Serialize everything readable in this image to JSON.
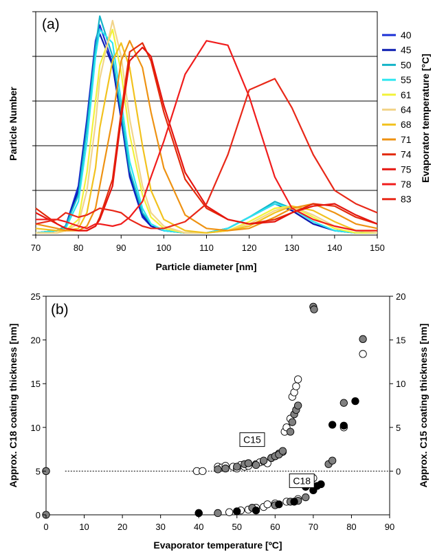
{
  "chart_data": [
    {
      "type": "line",
      "panel_label": "(a)",
      "xlabel": "Particle diameter [nm]",
      "ylabel": "Particle Number",
      "legend_title": "Evaporator temperature [°C]",
      "legend_placement": "right",
      "xlim": [
        70,
        150
      ],
      "xticks": [
        "70",
        "80",
        "90",
        "100",
        "110",
        "120",
        "130",
        "140",
        "150"
      ],
      "ylim": [
        0,
        1
      ],
      "y_tick_count": 6,
      "y_tick_labels_shown": false,
      "gridlines_y": [
        0.2,
        0.4,
        0.6,
        0.8
      ],
      "series": [
        {
          "name": "40",
          "color": "#1a2fd6",
          "x": [
            70,
            75,
            77,
            80,
            82,
            84,
            85,
            88,
            90,
            92,
            95,
            97,
            100,
            105,
            110,
            115,
            120,
            126,
            130,
            135,
            140,
            145,
            150
          ],
          "y": [
            0.01,
            0.02,
            0.04,
            0.22,
            0.52,
            0.87,
            0.94,
            0.77,
            0.52,
            0.26,
            0.08,
            0.04,
            0.02,
            0.01,
            0.01,
            0.03,
            0.08,
            0.14,
            0.11,
            0.05,
            0.02,
            0.01,
            0.01
          ]
        },
        {
          "name": "45",
          "color": "#0a1bb0",
          "x": [
            70,
            75,
            77,
            80,
            82,
            84,
            85,
            88,
            90,
            92,
            95,
            97,
            100,
            105,
            110,
            115,
            120,
            126,
            130,
            135,
            140,
            145,
            150
          ],
          "y": [
            0.01,
            0.02,
            0.04,
            0.2,
            0.5,
            0.85,
            0.9,
            0.76,
            0.52,
            0.27,
            0.09,
            0.04,
            0.02,
            0.01,
            0.01,
            0.03,
            0.08,
            0.14,
            0.11,
            0.05,
            0.02,
            0.01,
            0.01
          ]
        },
        {
          "name": "50",
          "color": "#14b4c8",
          "x": [
            70,
            75,
            77,
            80,
            82,
            84,
            85,
            88,
            90,
            92,
            95,
            97,
            100,
            105,
            110,
            115,
            120,
            126,
            130,
            135,
            140,
            145,
            150
          ],
          "y": [
            0.01,
            0.02,
            0.04,
            0.18,
            0.48,
            0.84,
            0.98,
            0.8,
            0.55,
            0.29,
            0.1,
            0.05,
            0.02,
            0.01,
            0.01,
            0.03,
            0.08,
            0.15,
            0.12,
            0.06,
            0.02,
            0.01,
            0.01
          ]
        },
        {
          "name": "55",
          "color": "#2ce6f0",
          "x": [
            70,
            75,
            77,
            80,
            82,
            84,
            85,
            88,
            90,
            92,
            95,
            97,
            100,
            105,
            110,
            115,
            120,
            126,
            130,
            135,
            140,
            145,
            150
          ],
          "y": [
            0.01,
            0.02,
            0.03,
            0.15,
            0.42,
            0.8,
            0.92,
            0.86,
            0.6,
            0.33,
            0.12,
            0.05,
            0.02,
            0.01,
            0.01,
            0.03,
            0.08,
            0.14,
            0.12,
            0.06,
            0.02,
            0.01,
            0.01
          ]
        },
        {
          "name": "61",
          "color": "#f2f23a",
          "x": [
            70,
            75,
            77,
            80,
            82,
            84,
            85,
            88,
            90,
            92,
            95,
            97,
            100,
            105,
            110,
            115,
            120,
            126,
            130,
            135,
            140,
            145,
            150
          ],
          "y": [
            0.01,
            0.01,
            0.02,
            0.07,
            0.28,
            0.6,
            0.76,
            0.92,
            0.73,
            0.45,
            0.18,
            0.08,
            0.03,
            0.01,
            0.01,
            0.02,
            0.06,
            0.12,
            0.13,
            0.08,
            0.03,
            0.01,
            0.01
          ]
        },
        {
          "name": "64",
          "color": "#f2d48a",
          "x": [
            70,
            75,
            77,
            80,
            82,
            84,
            85,
            88,
            90,
            92,
            95,
            97,
            100,
            105,
            110,
            115,
            120,
            126,
            130,
            135,
            140,
            145,
            150
          ],
          "y": [
            0.01,
            0.01,
            0.02,
            0.05,
            0.2,
            0.5,
            0.7,
            0.96,
            0.8,
            0.52,
            0.22,
            0.1,
            0.04,
            0.01,
            0.01,
            0.02,
            0.05,
            0.11,
            0.13,
            0.09,
            0.04,
            0.02,
            0.01
          ]
        },
        {
          "name": "68",
          "color": "#f2c21e",
          "x": [
            70,
            75,
            77,
            80,
            82,
            84,
            85,
            88,
            90,
            92,
            95,
            97,
            100,
            105,
            110,
            115,
            120,
            126,
            130,
            135,
            140,
            145,
            150
          ],
          "y": [
            0.03,
            0.02,
            0.02,
            0.03,
            0.1,
            0.3,
            0.48,
            0.78,
            0.86,
            0.75,
            0.4,
            0.2,
            0.07,
            0.02,
            0.01,
            0.02,
            0.04,
            0.1,
            0.13,
            0.11,
            0.06,
            0.02,
            0.02
          ]
        },
        {
          "name": "71",
          "color": "#ee9212",
          "x": [
            70,
            75,
            77,
            80,
            82,
            84,
            85,
            88,
            90,
            92,
            95,
            97,
            100,
            105,
            110,
            115,
            120,
            126,
            130,
            135,
            140,
            145,
            150
          ],
          "y": [
            0.05,
            0.03,
            0.02,
            0.02,
            0.04,
            0.12,
            0.22,
            0.52,
            0.78,
            0.87,
            0.75,
            0.55,
            0.3,
            0.09,
            0.03,
            0.02,
            0.03,
            0.08,
            0.12,
            0.14,
            0.1,
            0.05,
            0.03
          ]
        },
        {
          "name": "74",
          "color": "#e22a0a",
          "x": [
            70,
            75,
            77,
            80,
            82,
            84,
            85,
            88,
            90,
            92,
            95,
            97,
            100,
            105,
            110,
            115,
            120,
            126,
            130,
            135,
            140,
            145,
            150
          ],
          "y": [
            0.12,
            0.05,
            0.03,
            0.02,
            0.02,
            0.04,
            0.08,
            0.25,
            0.55,
            0.82,
            0.86,
            0.78,
            0.55,
            0.25,
            0.12,
            0.07,
            0.05,
            0.07,
            0.1,
            0.14,
            0.13,
            0.08,
            0.05
          ]
        },
        {
          "name": "75",
          "color": "#e5150f",
          "x": [
            70,
            75,
            77,
            80,
            82,
            84,
            85,
            88,
            90,
            92,
            95,
            97,
            100,
            105,
            110,
            115,
            120,
            126,
            130,
            135,
            140,
            145,
            150
          ],
          "y": [
            0.1,
            0.05,
            0.03,
            0.02,
            0.02,
            0.04,
            0.07,
            0.22,
            0.52,
            0.78,
            0.84,
            0.8,
            0.58,
            0.28,
            0.13,
            0.07,
            0.05,
            0.06,
            0.1,
            0.13,
            0.14,
            0.09,
            0.05
          ]
        },
        {
          "name": "78",
          "color": "#f01c1c",
          "x": [
            70,
            75,
            77,
            80,
            82,
            84,
            85,
            88,
            90,
            92,
            95,
            97,
            100,
            105,
            110,
            115,
            120,
            126,
            130,
            135,
            140,
            145,
            150
          ],
          "y": [
            0.07,
            0.07,
            0.06,
            0.04,
            0.03,
            0.05,
            0.05,
            0.04,
            0.05,
            0.08,
            0.15,
            0.26,
            0.42,
            0.72,
            0.87,
            0.85,
            0.62,
            0.26,
            0.12,
            0.07,
            0.04,
            0.02,
            0.02
          ]
        },
        {
          "name": "83",
          "color": "#e82818",
          "x": [
            70,
            75,
            77,
            80,
            82,
            84,
            85,
            88,
            90,
            92,
            95,
            97,
            100,
            105,
            110,
            115,
            120,
            126,
            130,
            135,
            140,
            145,
            150
          ],
          "y": [
            0.05,
            0.07,
            0.1,
            0.08,
            0.09,
            0.11,
            0.12,
            0.11,
            0.1,
            0.07,
            0.04,
            0.03,
            0.03,
            0.06,
            0.14,
            0.36,
            0.65,
            0.7,
            0.57,
            0.36,
            0.2,
            0.14,
            0.1
          ]
        }
      ]
    },
    {
      "type": "scatter",
      "panel_label": "(b)",
      "xlabel": "Evaporator temperature [ºC]",
      "ylabel": "Approx. C18 coating thickness [nm]",
      "ylabel_right": "Approx. C15 coating thickness [nm]",
      "xlim": [
        0,
        90
      ],
      "xticks": [
        "0",
        "10",
        "20",
        "30",
        "40",
        "50",
        "60",
        "70",
        "80",
        "90"
      ],
      "ylim": [
        0,
        25
      ],
      "yticks": [
        "0",
        "5",
        "10",
        "15",
        "20",
        "25"
      ],
      "ylim_right": [
        -5,
        20
      ],
      "yticks_right": [
        "0",
        "5",
        "10",
        "15",
        "20"
      ],
      "annotations": [
        {
          "text": "C15",
          "x": 54,
          "y": 8.6
        },
        {
          "text": "C18",
          "x": 67,
          "y": 3.9
        }
      ],
      "reference_line": {
        "axis": "right",
        "y": 0,
        "style": "dotted",
        "x_from": 5,
        "x_to": 90
      },
      "series": [
        {
          "marker": "open",
          "color": "#ffffff",
          "axis": "right",
          "x": [
            0,
            39.5,
            41,
            45,
            46,
            47,
            49,
            50,
            51,
            52,
            53,
            55,
            56,
            57,
            58,
            59,
            60,
            61,
            62,
            62.5,
            63,
            64,
            64.5,
            65,
            65.5,
            66
          ],
          "y": [
            0,
            0,
            0,
            0.5,
            0.4,
            0.6,
            0.5,
            0.3,
            0.7,
            0.5,
            0.6,
            0.8,
            1.0,
            1.1,
            0.9,
            1.5,
            1.7,
            2.0,
            2.2,
            4.5,
            5.0,
            6.0,
            8.5,
            9.0,
            9.7,
            10.5
          ]
        },
        {
          "marker": "gray",
          "color": "#808080",
          "axis": "right",
          "x": [
            0,
            45,
            47,
            50,
            52,
            53,
            55,
            57,
            59,
            60,
            61,
            62,
            64,
            64.5,
            65,
            65.5,
            66
          ],
          "y": [
            0,
            0.2,
            0.3,
            0.5,
            0.8,
            0.9,
            0.7,
            1.2,
            1.5,
            1.7,
            1.9,
            2.3,
            4.5,
            5.6,
            6.5,
            7.0,
            7.5
          ]
        },
        {
          "marker": "open",
          "color": "#ffffff",
          "axis": "left",
          "x": [
            40,
            48,
            51,
            53,
            55,
            57,
            58,
            60,
            63,
            66,
            70,
            78,
            83
          ],
          "y": [
            0.2,
            0.3,
            0.5,
            0.6,
            0.8,
            0.9,
            1.2,
            1.3,
            1.5,
            1.8,
            4.2,
            10.0,
            18.4
          ]
        },
        {
          "marker": "gray",
          "color": "#808080",
          "axis": "left",
          "x": [
            0,
            45,
            54,
            60,
            64,
            66,
            68,
            70,
            70.2,
            74,
            75,
            78,
            83
          ],
          "y": [
            0,
            0.2,
            0.8,
            1.1,
            1.5,
            1.6,
            2.0,
            23.8,
            23.5,
            5.8,
            6.2,
            12.8,
            20.1
          ]
        },
        {
          "marker": "filled",
          "color": "#000000",
          "axis": "left",
          "x": [
            40,
            50,
            55,
            61,
            65,
            68,
            70,
            71,
            72,
            75,
            78,
            81
          ],
          "y": [
            0.2,
            0.4,
            0.5,
            1.2,
            1.5,
            3.2,
            2.8,
            3.3,
            3.5,
            10.3,
            10.2,
            13.0
          ]
        }
      ]
    }
  ]
}
